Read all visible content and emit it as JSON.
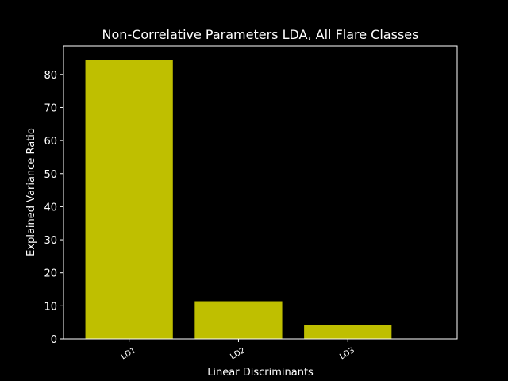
{
  "chart_data": {
    "type": "bar",
    "title": "Non-Correlative Parameters LDA, All Flare Classes",
    "xlabel": "Linear Discriminants",
    "ylabel": "Explained Variance Ratio",
    "categories": [
      "LD1",
      "LD2",
      "LD3"
    ],
    "values": [
      84.4,
      11.4,
      4.3
    ],
    "ylim": [
      0,
      88.6
    ],
    "yticks": [
      0,
      10,
      20,
      30,
      40,
      50,
      60,
      70,
      80
    ],
    "bar_color": "#bfbf00",
    "background": "#000000",
    "axis_color": "#ffffff",
    "grid": false
  }
}
